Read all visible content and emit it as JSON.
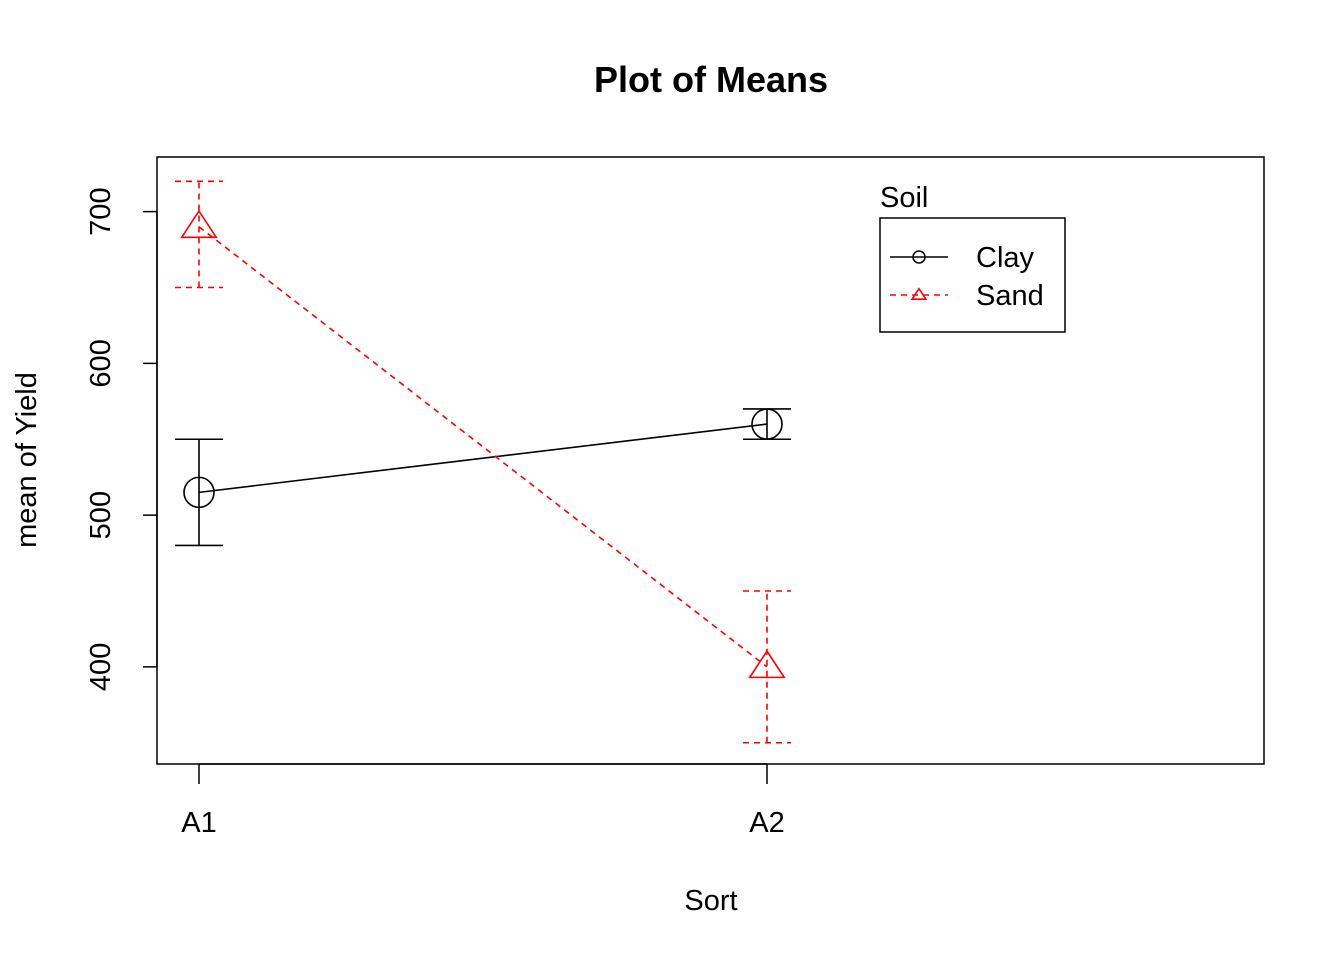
{
  "chart_data": {
    "type": "line",
    "title": "Plot of Means",
    "xlabel": "Sort",
    "ylabel": "mean of Yield",
    "categories": [
      "A1",
      "A2"
    ],
    "ylim": [
      336,
      736
    ],
    "y_ticks": [
      400,
      500,
      600,
      700
    ],
    "grid": false,
    "legend": {
      "title": "Soil",
      "position": "top-right"
    },
    "series": [
      {
        "name": "Clay",
        "color": "#000000",
        "marker": "circle",
        "line": "solid",
        "values": [
          515,
          560
        ],
        "err_low": [
          480,
          550
        ],
        "err_high": [
          550,
          570
        ]
      },
      {
        "name": "Sand",
        "color": "#ff0000",
        "marker": "triangle",
        "line": "dashed",
        "values": [
          690,
          400
        ],
        "err_low": [
          650,
          350
        ],
        "err_high": [
          720,
          450
        ]
      }
    ]
  }
}
